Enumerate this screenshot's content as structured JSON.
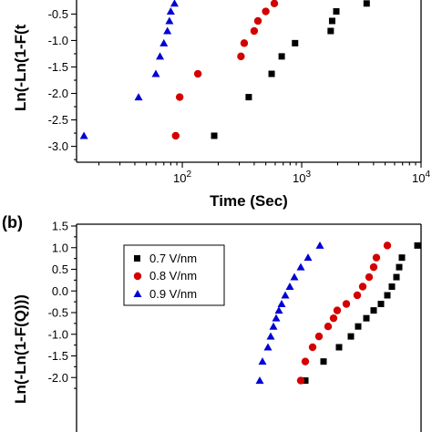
{
  "chart_data": [
    {
      "panel": "a",
      "type": "scatter",
      "xscale": "log",
      "xlim": [
        13,
        10000
      ],
      "ylim": [
        -3.3,
        -0.2
      ],
      "xlabel": "Time (Sec)",
      "ylabel": "Ln(-Ln(1-F(t",
      "xticks": [
        100,
        1000,
        10000
      ],
      "xtick_labels": [
        {
          "base": "10",
          "exp": "2"
        },
        {
          "base": "10",
          "exp": "3"
        },
        {
          "base": "10",
          "exp": "4"
        }
      ],
      "yticks": [
        -0.5,
        -1.0,
        -1.5,
        -2.0,
        -2.5,
        -3.0
      ],
      "ytick_labels": [
        "-0.5",
        "-1.0",
        "-1.5",
        "-2.0",
        "-2.5",
        "-3.0"
      ],
      "series": [
        {
          "marker": "square",
          "color": "#000000",
          "points": [
            [
              185,
              -2.8
            ],
            [
              360,
              -2.07
            ],
            [
              560,
              -1.63
            ],
            [
              680,
              -1.3
            ],
            [
              880,
              -1.05
            ],
            [
              1750,
              -0.82
            ],
            [
              1800,
              -0.63
            ],
            [
              1950,
              -0.45
            ],
            [
              3500,
              -0.3
            ]
          ]
        },
        {
          "marker": "circle",
          "color": "#d40000",
          "points": [
            [
              88,
              -2.8
            ],
            [
              95,
              -2.07
            ],
            [
              135,
              -1.63
            ],
            [
              310,
              -1.3
            ],
            [
              330,
              -1.05
            ],
            [
              400,
              -0.82
            ],
            [
              430,
              -0.63
            ],
            [
              500,
              -0.45
            ],
            [
              590,
              -0.3
            ]
          ]
        },
        {
          "marker": "triangle",
          "color": "#0000d4",
          "points": [
            [
              15,
              -2.8
            ],
            [
              43,
              -2.07
            ],
            [
              60,
              -1.63
            ],
            [
              65,
              -1.3
            ],
            [
              70,
              -1.05
            ],
            [
              75,
              -0.82
            ],
            [
              78,
              -0.63
            ],
            [
              80,
              -0.45
            ],
            [
              86,
              -0.3
            ]
          ]
        }
      ]
    },
    {
      "panel": "b",
      "panel_label": "(b)",
      "type": "scatter",
      "ylim": [
        -2.3,
        1.5
      ],
      "ylabel": "Ln(-Ln(1-F(Q)))",
      "yticks": [
        1.5,
        1.0,
        0.5,
        0.0,
        -0.5,
        -1.0,
        -1.5,
        -2.0
      ],
      "ytick_labels": [
        "1.5",
        "1.0",
        "0.5",
        "0.0",
        "-0.5",
        "-1.0",
        "-1.5",
        "-2.0"
      ],
      "legend": {
        "placement": "top-left",
        "entries": [
          "0.7 V/nm",
          "0.8 V/nm",
          "0.9 V/nm"
        ]
      },
      "series": [
        {
          "name": "0.7 V/nm",
          "marker": "square",
          "color": "#000000",
          "points": [
            [
              335,
              -2.07
            ],
            [
              355,
              -1.63
            ],
            [
              372,
              -1.3
            ],
            [
              385,
              -1.05
            ],
            [
              393,
              -0.82
            ],
            [
              402,
              -0.63
            ],
            [
              410,
              -0.45
            ],
            [
              418,
              -0.3
            ],
            [
              425,
              -0.1
            ],
            [
              430,
              0.1
            ],
            [
              435,
              0.32
            ],
            [
              438,
              0.55
            ],
            [
              441,
              0.77
            ],
            [
              458,
              1.05
            ]
          ]
        },
        {
          "name": "0.8 V/nm",
          "marker": "circle",
          "color": "#d40000",
          "points": [
            [
              330,
              -2.07
            ],
            [
              335,
              -1.63
            ],
            [
              343,
              -1.3
            ],
            [
              350,
              -1.05
            ],
            [
              360,
              -0.82
            ],
            [
              366,
              -0.63
            ],
            [
              370,
              -0.45
            ],
            [
              380,
              -0.3
            ],
            [
              392,
              -0.1
            ],
            [
              398,
              0.1
            ],
            [
              405,
              0.32
            ],
            [
              410,
              0.55
            ],
            [
              413,
              0.77
            ],
            [
              425,
              1.05
            ]
          ]
        },
        {
          "name": "0.9 V/nm",
          "marker": "triangle",
          "color": "#0000d4",
          "points": [
            [
              285,
              -2.07
            ],
            [
              288,
              -1.63
            ],
            [
              294,
              -1.3
            ],
            [
              297,
              -1.05
            ],
            [
              300,
              -0.82
            ],
            [
              303,
              -0.63
            ],
            [
              306,
              -0.45
            ],
            [
              309,
              -0.3
            ],
            [
              313,
              -0.1
            ],
            [
              318,
              0.1
            ],
            [
              323,
              0.32
            ],
            [
              330,
              0.55
            ],
            [
              338,
              0.77
            ],
            [
              351,
              1.05
            ]
          ]
        }
      ]
    }
  ]
}
